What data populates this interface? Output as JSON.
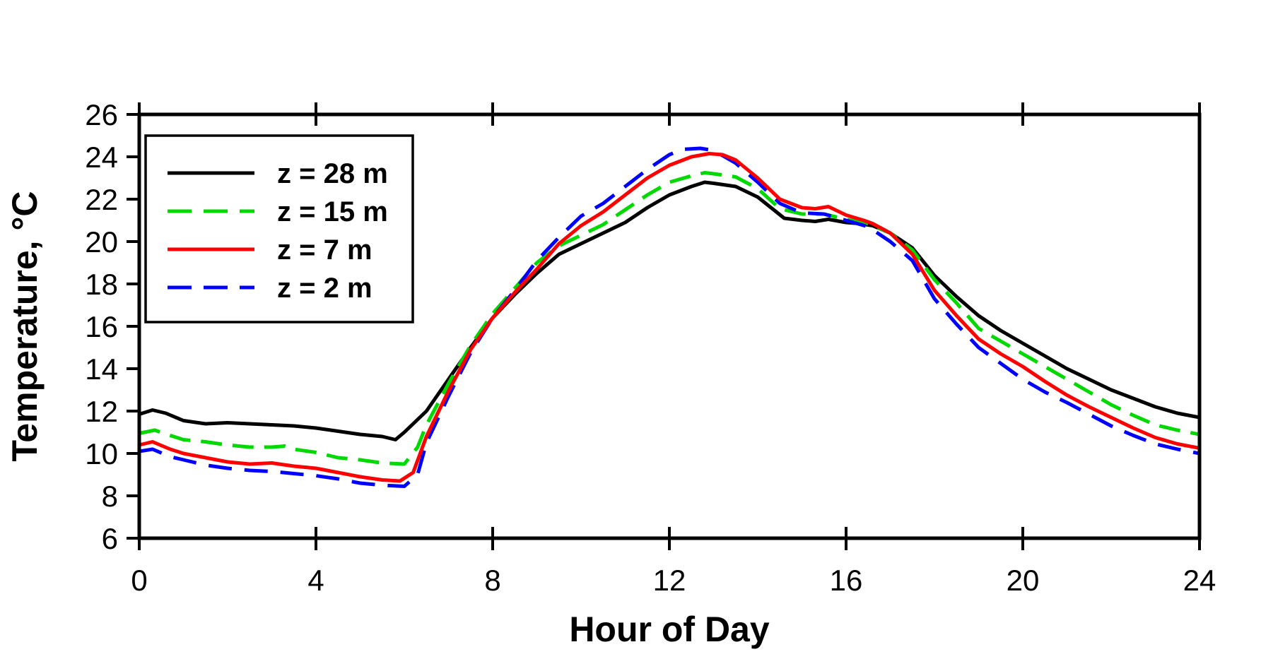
{
  "chart_data": {
    "type": "line",
    "title": "",
    "xlabel": "Hour of Day",
    "ylabel": "Temperature, °C",
    "xlim": [
      0,
      24
    ],
    "ylim": [
      6,
      26
    ],
    "x_ticks": [
      0,
      4,
      8,
      12,
      16,
      20,
      24
    ],
    "y_ticks": [
      6,
      8,
      10,
      12,
      14,
      16,
      18,
      20,
      22,
      24,
      26
    ],
    "grid": false,
    "legend_position": "upper-left",
    "background_color": "#ffffff",
    "axis_color": "#000000",
    "series": [
      {
        "name": "z = 28 m",
        "color": "#000000",
        "style": "solid",
        "points": [
          [
            0,
            11.85
          ],
          [
            0.3,
            12.05
          ],
          [
            0.6,
            11.9
          ],
          [
            1,
            11.55
          ],
          [
            1.5,
            11.4
          ],
          [
            2,
            11.45
          ],
          [
            2.5,
            11.4
          ],
          [
            3,
            11.35
          ],
          [
            3.5,
            11.3
          ],
          [
            4,
            11.2
          ],
          [
            4.5,
            11.05
          ],
          [
            5,
            10.9
          ],
          [
            5.5,
            10.8
          ],
          [
            5.8,
            10.65
          ],
          [
            6,
            11.0
          ],
          [
            6.5,
            12.0
          ],
          [
            7,
            13.5
          ],
          [
            7.5,
            15.0
          ],
          [
            8,
            16.4
          ],
          [
            8.5,
            17.5
          ],
          [
            9,
            18.5
          ],
          [
            9.5,
            19.4
          ],
          [
            10,
            19.9
          ],
          [
            10.5,
            20.4
          ],
          [
            11,
            20.9
          ],
          [
            11.5,
            21.6
          ],
          [
            12,
            22.2
          ],
          [
            12.5,
            22.6
          ],
          [
            12.8,
            22.8
          ],
          [
            13,
            22.75
          ],
          [
            13.5,
            22.6
          ],
          [
            13.8,
            22.3
          ],
          [
            14,
            22.1
          ],
          [
            14.3,
            21.6
          ],
          [
            14.6,
            21.1
          ],
          [
            15,
            21.0
          ],
          [
            15.3,
            20.95
          ],
          [
            15.6,
            21.05
          ],
          [
            16,
            20.9
          ],
          [
            16.3,
            20.85
          ],
          [
            16.6,
            20.75
          ],
          [
            17,
            20.4
          ],
          [
            17.5,
            19.7
          ],
          [
            18,
            18.4
          ],
          [
            18.5,
            17.4
          ],
          [
            19,
            16.5
          ],
          [
            19.5,
            15.8
          ],
          [
            20,
            15.2
          ],
          [
            20.5,
            14.6
          ],
          [
            21,
            14.0
          ],
          [
            21.5,
            13.5
          ],
          [
            22,
            13.0
          ],
          [
            22.5,
            12.6
          ],
          [
            23,
            12.2
          ],
          [
            23.5,
            11.9
          ],
          [
            24,
            11.7
          ]
        ]
      },
      {
        "name": "z = 15 m",
        "color": "#00d900",
        "style": "dashed",
        "points": [
          [
            0,
            10.95
          ],
          [
            0.35,
            11.1
          ],
          [
            0.7,
            10.85
          ],
          [
            1,
            10.65
          ],
          [
            1.5,
            10.55
          ],
          [
            2,
            10.4
          ],
          [
            2.5,
            10.3
          ],
          [
            3,
            10.3
          ],
          [
            3.3,
            10.35
          ],
          [
            3.5,
            10.2
          ],
          [
            4,
            10.05
          ],
          [
            4.5,
            9.8
          ],
          [
            5,
            9.7
          ],
          [
            5.5,
            9.55
          ],
          [
            6,
            9.5
          ],
          [
            6.3,
            10.3
          ],
          [
            6.5,
            11.35
          ],
          [
            7,
            13.3
          ],
          [
            7.5,
            15.1
          ],
          [
            8,
            16.6
          ],
          [
            8.5,
            17.8
          ],
          [
            9,
            19.0
          ],
          [
            9.5,
            19.8
          ],
          [
            10,
            20.3
          ],
          [
            10.5,
            20.8
          ],
          [
            11,
            21.5
          ],
          [
            11.5,
            22.2
          ],
          [
            12,
            22.8
          ],
          [
            12.5,
            23.1
          ],
          [
            12.8,
            23.25
          ],
          [
            13,
            23.2
          ],
          [
            13.5,
            23.05
          ],
          [
            14,
            22.5
          ],
          [
            14.5,
            21.55
          ],
          [
            15,
            21.3
          ],
          [
            15.5,
            21.3
          ],
          [
            16,
            21.05
          ],
          [
            16.5,
            20.85
          ],
          [
            17,
            20.4
          ],
          [
            17.5,
            19.6
          ],
          [
            18,
            18.2
          ],
          [
            18.5,
            17.1
          ],
          [
            19,
            15.9
          ],
          [
            19.5,
            15.3
          ],
          [
            20,
            14.7
          ],
          [
            20.5,
            14.1
          ],
          [
            21,
            13.5
          ],
          [
            21.5,
            12.9
          ],
          [
            22,
            12.3
          ],
          [
            22.5,
            11.8
          ],
          [
            23,
            11.35
          ],
          [
            23.5,
            11.1
          ],
          [
            24,
            10.9
          ]
        ]
      },
      {
        "name": "z = 7 m",
        "color": "#ff0000",
        "style": "solid",
        "points": [
          [
            0,
            10.4
          ],
          [
            0.3,
            10.55
          ],
          [
            0.7,
            10.2
          ],
          [
            1,
            10.0
          ],
          [
            1.5,
            9.8
          ],
          [
            2,
            9.6
          ],
          [
            2.5,
            9.5
          ],
          [
            3,
            9.55
          ],
          [
            3.5,
            9.4
          ],
          [
            4,
            9.3
          ],
          [
            4.5,
            9.1
          ],
          [
            5,
            8.9
          ],
          [
            5.5,
            8.75
          ],
          [
            5.9,
            8.7
          ],
          [
            6.2,
            9.1
          ],
          [
            6.5,
            10.8
          ],
          [
            7,
            12.95
          ],
          [
            7.5,
            14.9
          ],
          [
            8,
            16.4
          ],
          [
            8.5,
            17.6
          ],
          [
            9,
            18.7
          ],
          [
            9.5,
            19.9
          ],
          [
            10,
            20.75
          ],
          [
            10.5,
            21.4
          ],
          [
            11,
            22.2
          ],
          [
            11.5,
            23.0
          ],
          [
            12,
            23.6
          ],
          [
            12.5,
            24.0
          ],
          [
            12.9,
            24.15
          ],
          [
            13.2,
            24.1
          ],
          [
            13.5,
            23.85
          ],
          [
            14,
            23.0
          ],
          [
            14.5,
            22.0
          ],
          [
            15,
            21.6
          ],
          [
            15.3,
            21.55
          ],
          [
            15.6,
            21.65
          ],
          [
            16,
            21.25
          ],
          [
            16.4,
            21.0
          ],
          [
            16.6,
            20.85
          ],
          [
            17,
            20.4
          ],
          [
            17.5,
            19.4
          ],
          [
            18,
            17.7
          ],
          [
            18.5,
            16.5
          ],
          [
            19,
            15.4
          ],
          [
            19.5,
            14.7
          ],
          [
            20,
            14.1
          ],
          [
            20.5,
            13.4
          ],
          [
            21,
            12.75
          ],
          [
            21.5,
            12.2
          ],
          [
            22,
            11.7
          ],
          [
            22.5,
            11.2
          ],
          [
            23,
            10.75
          ],
          [
            23.5,
            10.45
          ],
          [
            24,
            10.25
          ]
        ]
      },
      {
        "name": "z = 2 m",
        "color": "#0000ff",
        "style": "dashed",
        "points": [
          [
            0,
            10.1
          ],
          [
            0.3,
            10.2
          ],
          [
            0.7,
            9.85
          ],
          [
            1,
            9.7
          ],
          [
            1.5,
            9.45
          ],
          [
            2,
            9.3
          ],
          [
            2.5,
            9.2
          ],
          [
            3,
            9.15
          ],
          [
            3.5,
            9.05
          ],
          [
            4,
            8.95
          ],
          [
            4.5,
            8.8
          ],
          [
            5,
            8.6
          ],
          [
            5.5,
            8.5
          ],
          [
            6,
            8.45
          ],
          [
            6.3,
            9.0
          ],
          [
            6.5,
            10.5
          ],
          [
            7,
            12.7
          ],
          [
            7.5,
            14.75
          ],
          [
            8,
            16.4
          ],
          [
            8.5,
            17.7
          ],
          [
            9,
            19.1
          ],
          [
            9.5,
            20.2
          ],
          [
            10,
            21.2
          ],
          [
            10.5,
            21.8
          ],
          [
            11,
            22.6
          ],
          [
            11.5,
            23.4
          ],
          [
            12,
            24.1
          ],
          [
            12.3,
            24.35
          ],
          [
            12.7,
            24.4
          ],
          [
            13,
            24.3
          ],
          [
            13.5,
            23.7
          ],
          [
            14,
            22.8
          ],
          [
            14.5,
            21.8
          ],
          [
            15,
            21.35
          ],
          [
            15.5,
            21.3
          ],
          [
            16,
            21.0
          ],
          [
            16.5,
            20.7
          ],
          [
            17,
            20.0
          ],
          [
            17.5,
            19.1
          ],
          [
            18,
            17.3
          ],
          [
            18.5,
            16.1
          ],
          [
            19,
            15.0
          ],
          [
            19.5,
            14.25
          ],
          [
            20,
            13.5
          ],
          [
            20.5,
            12.9
          ],
          [
            21,
            12.4
          ],
          [
            21.5,
            11.85
          ],
          [
            22,
            11.3
          ],
          [
            22.5,
            10.85
          ],
          [
            23,
            10.45
          ],
          [
            23.5,
            10.2
          ],
          [
            24,
            10.0
          ]
        ]
      }
    ]
  }
}
